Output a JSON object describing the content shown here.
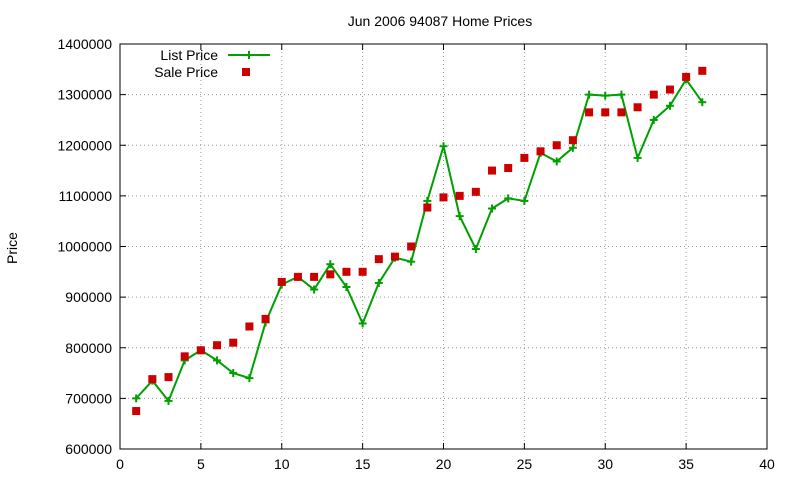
{
  "chart_data": {
    "type": "line",
    "title": "Jun 2006 94087 Home Prices",
    "xlabel": "",
    "ylabel": "Price",
    "xlim": [
      0,
      40
    ],
    "ylim": [
      600000,
      1400000
    ],
    "x_ticks": [
      0,
      5,
      10,
      15,
      20,
      25,
      30,
      35,
      40
    ],
    "y_ticks": [
      600000,
      700000,
      800000,
      900000,
      1000000,
      1100000,
      1200000,
      1300000,
      1400000
    ],
    "grid": true,
    "legend_position": "top-left",
    "series": [
      {
        "name": "List Price",
        "style": "line-points",
        "color": "#00a000",
        "x": [
          1,
          2,
          3,
          4,
          5,
          6,
          7,
          8,
          9,
          10,
          11,
          12,
          13,
          14,
          15,
          16,
          17,
          18,
          19,
          20,
          21,
          22,
          23,
          24,
          25,
          26,
          27,
          28,
          29,
          30,
          31,
          32,
          33,
          34,
          35,
          36
        ],
        "values": [
          700000,
          735000,
          695000,
          775000,
          795000,
          775000,
          750000,
          740000,
          850000,
          925000,
          940000,
          915000,
          965000,
          920000,
          848000,
          928000,
          978000,
          970000,
          1090000,
          1198000,
          1060000,
          995000,
          1075000,
          1095000,
          1090000,
          1185000,
          1168000,
          1195000,
          1300000,
          1298000,
          1300000,
          1175000,
          1250000,
          1278000,
          1330000,
          1285000
        ]
      },
      {
        "name": "Sale Price",
        "style": "points",
        "color": "#cc0000",
        "x": [
          1,
          2,
          3,
          4,
          5,
          6,
          7,
          8,
          9,
          10,
          11,
          12,
          13,
          14,
          15,
          16,
          17,
          18,
          19,
          20,
          21,
          22,
          23,
          24,
          25,
          26,
          27,
          28,
          29,
          30,
          31,
          32,
          33,
          34,
          35,
          36
        ],
        "values": [
          675000,
          738000,
          742000,
          783000,
          795000,
          805000,
          810000,
          842000,
          857000,
          930000,
          940000,
          940000,
          945000,
          950000,
          950000,
          975000,
          980000,
          1000000,
          1077000,
          1097000,
          1100000,
          1108000,
          1150000,
          1155000,
          1175000,
          1188000,
          1200000,
          1210000,
          1265000,
          1265000,
          1265000,
          1275000,
          1300000,
          1310000,
          1335000,
          1347000
        ]
      }
    ]
  }
}
